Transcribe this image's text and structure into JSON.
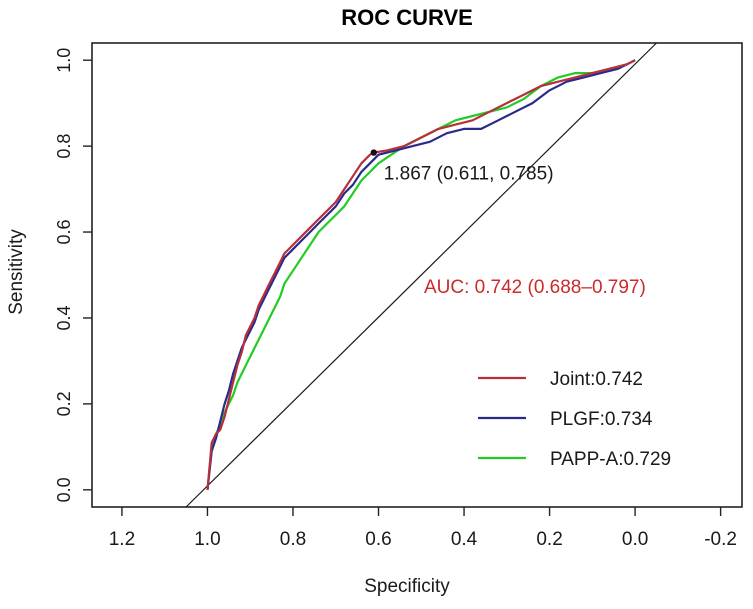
{
  "chart_data": {
    "type": "line",
    "title": "ROC CURVE",
    "xlabel": "Specificity",
    "ylabel": "Sensitivity",
    "x_reversed": true,
    "xlim": [
      1.27,
      -0.25
    ],
    "ylim": [
      -0.04,
      1.04
    ],
    "x_ticks": [
      "1.2",
      "1.0",
      "0.8",
      "0.6",
      "0.4",
      "0.2",
      "0.0",
      "-0.2"
    ],
    "x_tick_values": [
      1.2,
      1.0,
      0.8,
      0.6,
      0.4,
      0.2,
      0.0,
      -0.2
    ],
    "y_ticks": [
      "0.0",
      "0.2",
      "0.4",
      "0.6",
      "0.8",
      "1.0"
    ],
    "y_tick_values": [
      0.0,
      0.2,
      0.4,
      0.6,
      0.8,
      1.0
    ],
    "diagonal": {
      "from": [
        1.05,
        -0.04
      ],
      "to": [
        -0.05,
        1.04
      ]
    },
    "threshold_point": {
      "x": 0.611,
      "y": 0.785,
      "label": "1.867 (0.611, 0.785)"
    },
    "auc_annotation": {
      "text": "AUC: 0.742 (0.688–0.797)",
      "color": "#cc2a2a"
    },
    "legend_position": "bottom-right",
    "series": [
      {
        "name": "Joint:0.742",
        "color": "#b5303c",
        "points": [
          [
            1.0,
            0.0
          ],
          [
            0.99,
            0.11
          ],
          [
            0.98,
            0.13
          ],
          [
            0.97,
            0.14
          ],
          [
            0.96,
            0.17
          ],
          [
            0.95,
            0.21
          ],
          [
            0.94,
            0.25
          ],
          [
            0.93,
            0.29
          ],
          [
            0.92,
            0.32
          ],
          [
            0.91,
            0.36
          ],
          [
            0.9,
            0.38
          ],
          [
            0.89,
            0.4
          ],
          [
            0.88,
            0.43
          ],
          [
            0.87,
            0.45
          ],
          [
            0.86,
            0.47
          ],
          [
            0.85,
            0.49
          ],
          [
            0.84,
            0.51
          ],
          [
            0.83,
            0.53
          ],
          [
            0.82,
            0.55
          ],
          [
            0.8,
            0.57
          ],
          [
            0.78,
            0.59
          ],
          [
            0.76,
            0.61
          ],
          [
            0.74,
            0.63
          ],
          [
            0.72,
            0.65
          ],
          [
            0.7,
            0.67
          ],
          [
            0.68,
            0.7
          ],
          [
            0.66,
            0.73
          ],
          [
            0.64,
            0.76
          ],
          [
            0.62,
            0.78
          ],
          [
            0.611,
            0.785
          ],
          [
            0.58,
            0.79
          ],
          [
            0.54,
            0.8
          ],
          [
            0.5,
            0.82
          ],
          [
            0.46,
            0.84
          ],
          [
            0.42,
            0.85
          ],
          [
            0.38,
            0.86
          ],
          [
            0.34,
            0.88
          ],
          [
            0.3,
            0.9
          ],
          [
            0.26,
            0.92
          ],
          [
            0.22,
            0.94
          ],
          [
            0.18,
            0.95
          ],
          [
            0.14,
            0.96
          ],
          [
            0.1,
            0.97
          ],
          [
            0.06,
            0.98
          ],
          [
            0.02,
            0.99
          ],
          [
            0.0,
            1.0
          ]
        ]
      },
      {
        "name": "PLGF:0.734",
        "color": "#2a2a8c",
        "points": [
          [
            1.0,
            0.0
          ],
          [
            0.99,
            0.09
          ],
          [
            0.98,
            0.12
          ],
          [
            0.97,
            0.16
          ],
          [
            0.96,
            0.2
          ],
          [
            0.95,
            0.23
          ],
          [
            0.94,
            0.27
          ],
          [
            0.93,
            0.3
          ],
          [
            0.92,
            0.33
          ],
          [
            0.91,
            0.35
          ],
          [
            0.9,
            0.37
          ],
          [
            0.89,
            0.39
          ],
          [
            0.88,
            0.42
          ],
          [
            0.87,
            0.44
          ],
          [
            0.86,
            0.46
          ],
          [
            0.85,
            0.48
          ],
          [
            0.84,
            0.5
          ],
          [
            0.83,
            0.52
          ],
          [
            0.82,
            0.54
          ],
          [
            0.8,
            0.56
          ],
          [
            0.78,
            0.58
          ],
          [
            0.76,
            0.6
          ],
          [
            0.74,
            0.62
          ],
          [
            0.72,
            0.64
          ],
          [
            0.7,
            0.66
          ],
          [
            0.68,
            0.69
          ],
          [
            0.66,
            0.71
          ],
          [
            0.64,
            0.74
          ],
          [
            0.62,
            0.76
          ],
          [
            0.6,
            0.78
          ],
          [
            0.56,
            0.79
          ],
          [
            0.52,
            0.8
          ],
          [
            0.48,
            0.81
          ],
          [
            0.44,
            0.83
          ],
          [
            0.4,
            0.84
          ],
          [
            0.36,
            0.84
          ],
          [
            0.32,
            0.86
          ],
          [
            0.28,
            0.88
          ],
          [
            0.24,
            0.9
          ],
          [
            0.2,
            0.93
          ],
          [
            0.16,
            0.95
          ],
          [
            0.12,
            0.96
          ],
          [
            0.08,
            0.97
          ],
          [
            0.04,
            0.98
          ],
          [
            0.0,
            1.0
          ]
        ]
      },
      {
        "name": "PAPP-A:0.729",
        "color": "#22cc22",
        "points": [
          [
            1.0,
            0.0
          ],
          [
            0.99,
            0.1
          ],
          [
            0.98,
            0.13
          ],
          [
            0.97,
            0.15
          ],
          [
            0.96,
            0.18
          ],
          [
            0.95,
            0.2
          ],
          [
            0.94,
            0.22
          ],
          [
            0.93,
            0.25
          ],
          [
            0.92,
            0.27
          ],
          [
            0.91,
            0.29
          ],
          [
            0.9,
            0.31
          ],
          [
            0.89,
            0.33
          ],
          [
            0.88,
            0.35
          ],
          [
            0.87,
            0.37
          ],
          [
            0.86,
            0.39
          ],
          [
            0.85,
            0.41
          ],
          [
            0.84,
            0.43
          ],
          [
            0.83,
            0.45
          ],
          [
            0.82,
            0.48
          ],
          [
            0.8,
            0.51
          ],
          [
            0.78,
            0.54
          ],
          [
            0.76,
            0.57
          ],
          [
            0.74,
            0.6
          ],
          [
            0.72,
            0.62
          ],
          [
            0.7,
            0.64
          ],
          [
            0.68,
            0.66
          ],
          [
            0.66,
            0.69
          ],
          [
            0.64,
            0.72
          ],
          [
            0.62,
            0.74
          ],
          [
            0.6,
            0.76
          ],
          [
            0.57,
            0.78
          ],
          [
            0.54,
            0.8
          ],
          [
            0.5,
            0.82
          ],
          [
            0.46,
            0.84
          ],
          [
            0.42,
            0.86
          ],
          [
            0.38,
            0.87
          ],
          [
            0.34,
            0.88
          ],
          [
            0.3,
            0.89
          ],
          [
            0.26,
            0.91
          ],
          [
            0.22,
            0.94
          ],
          [
            0.18,
            0.96
          ],
          [
            0.14,
            0.97
          ],
          [
            0.1,
            0.97
          ],
          [
            0.06,
            0.98
          ],
          [
            0.02,
            0.99
          ],
          [
            0.0,
            1.0
          ]
        ]
      }
    ]
  }
}
